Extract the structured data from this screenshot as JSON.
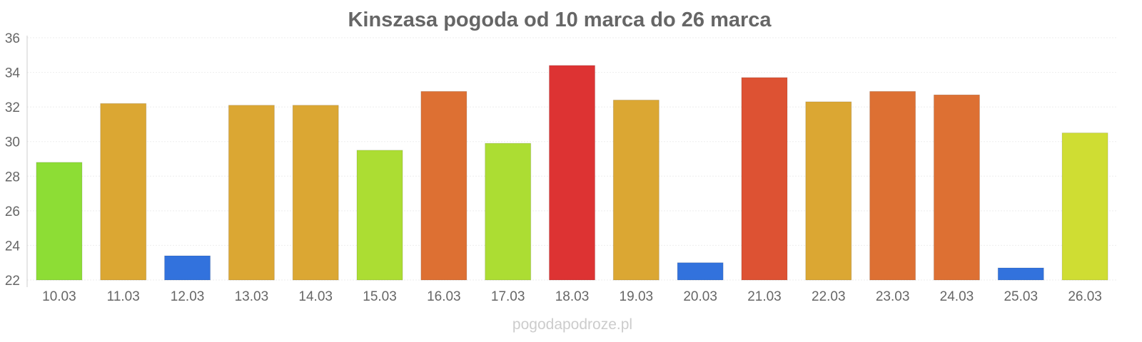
{
  "chart_data": {
    "type": "bar",
    "title": "Kinszasa pogoda od 10 marca do 26 marca",
    "xlabel": "",
    "ylabel": "",
    "ylim": [
      22,
      36
    ],
    "yticks": [
      22,
      24,
      26,
      28,
      30,
      32,
      34,
      36
    ],
    "grid": true,
    "categories": [
      "10.03",
      "11.03",
      "12.03",
      "13.03",
      "14.03",
      "15.03",
      "16.03",
      "17.03",
      "18.03",
      "19.03",
      "20.03",
      "21.03",
      "22.03",
      "23.03",
      "24.03",
      "25.03",
      "26.03"
    ],
    "values": [
      28.8,
      32.2,
      23.4,
      32.1,
      32.1,
      29.5,
      32.9,
      29.9,
      34.4,
      32.4,
      23.0,
      33.7,
      32.3,
      32.9,
      32.7,
      22.7,
      30.5
    ],
    "colors": [
      "#8ddd35",
      "#dba733",
      "#3272dd",
      "#dba733",
      "#dba733",
      "#acdd33",
      "#dd7033",
      "#acdd33",
      "#dd3333",
      "#dba733",
      "#3272dd",
      "#dd5233",
      "#dba733",
      "#dd7033",
      "#dd7033",
      "#3272dd",
      "#cfdd33"
    ]
  },
  "watermark": "pogodapodroze.pl"
}
